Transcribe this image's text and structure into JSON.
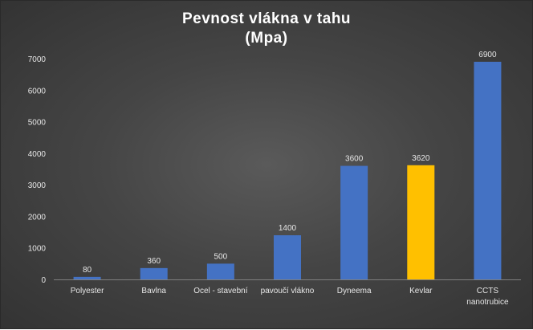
{
  "chart_data": {
    "type": "bar",
    "title_line1": "Pevnost vlákna v tahu",
    "title_line2": "(Mpa)",
    "categories": [
      "Polyester",
      "Bavlna",
      "Ocel - stavební",
      "pavoučí vlákno",
      "Dyneema",
      "Kevlar",
      "CCTS nanotrubice"
    ],
    "values": [
      80,
      360,
      500,
      1400,
      3600,
      3620,
      6900
    ],
    "data_labels": [
      "80",
      "360",
      "500",
      "1400",
      "3600",
      "3620",
      "6900"
    ],
    "ylim": [
      0,
      7000
    ],
    "yticks": [
      0,
      1000,
      2000,
      3000,
      4000,
      5000,
      6000,
      7000
    ],
    "grid": false,
    "legend": "none",
    "colors": {
      "default_bar": "#4472c4",
      "highlight_bar": "#ffc000",
      "highlight_category": "Kevlar",
      "axis": "#7f7f7f",
      "text": "#e6e6e6",
      "background": "#404040"
    }
  }
}
